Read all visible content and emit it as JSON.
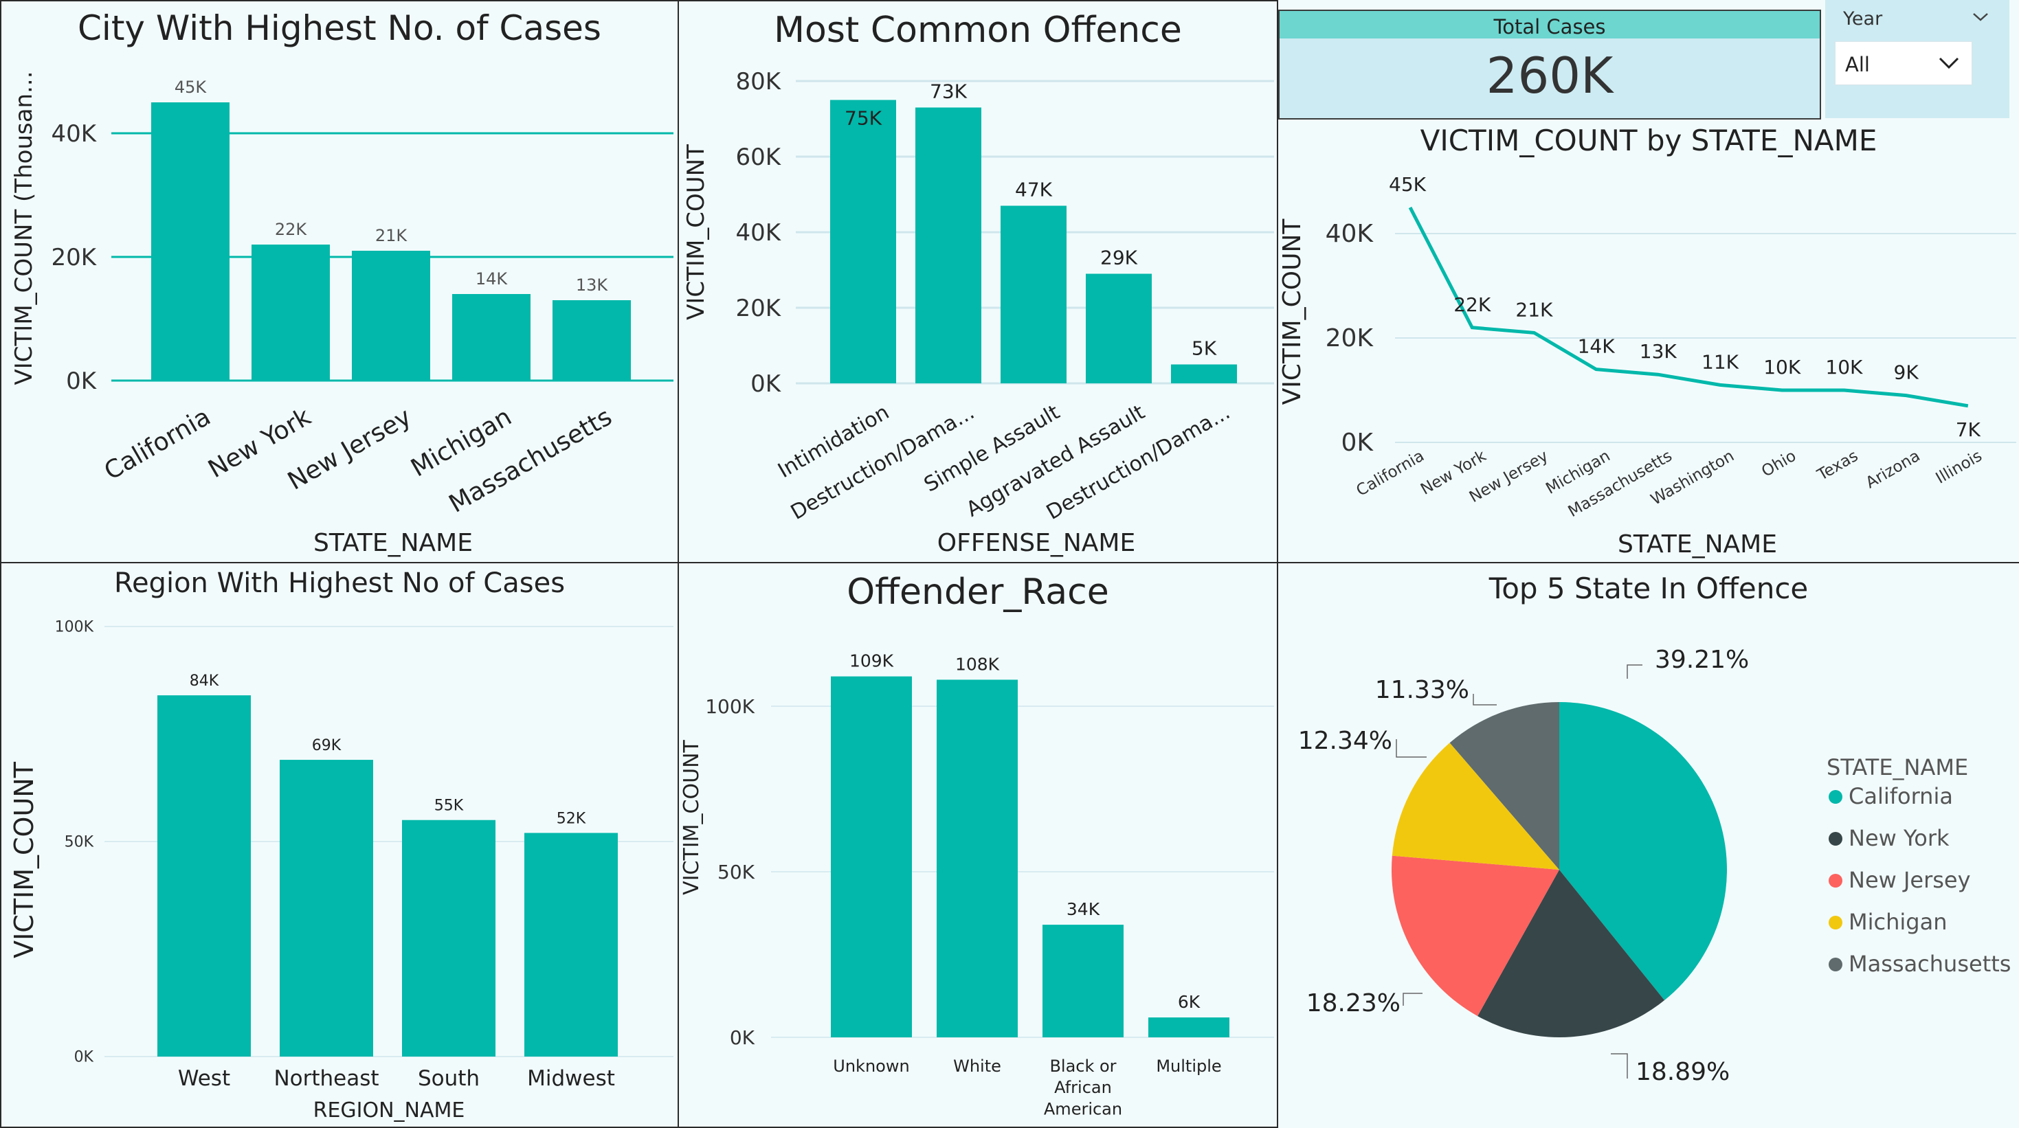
{
  "colors": {
    "teal": "#01b8aa",
    "dark": "#374649",
    "red": "#fd625e",
    "yellow": "#f2c80f",
    "gray": "#5f6b6d",
    "grid": "#cfe6ec",
    "panel_bg": "#f2fbfc",
    "kpi_band": "#6cd6cf",
    "kpi_bg": "#cdebf2"
  },
  "kpi": {
    "label": "Total Cases",
    "value": "260K"
  },
  "slicer": {
    "label": "Year",
    "selected": "All",
    "icon": "chevron-down-icon"
  },
  "chart_data": [
    {
      "id": "city",
      "type": "bar",
      "title": "City With Highest No. of Cases",
      "xlabel": "STATE_NAME",
      "ylabel": "VICTIM_COUNT (Thousan...",
      "categories": [
        "California",
        "New York",
        "New Jersey",
        "Michigan",
        "Massachusetts"
      ],
      "values": [
        45,
        22,
        21,
        14,
        13
      ],
      "data_labels": [
        "45K",
        "22K",
        "21K",
        "14K",
        "13K"
      ],
      "y_ticks": [
        "0K",
        "20K",
        "40K"
      ],
      "ylim": [
        0,
        48
      ],
      "grid": true
    },
    {
      "id": "offence",
      "type": "bar",
      "title": "Most Common Offence",
      "xlabel": "OFFENSE_NAME",
      "ylabel": "VICTIM_COUNT",
      "categories": [
        "Intimidation",
        "Destruction/Dama...",
        "Simple Assault",
        "Aggravated Assault",
        "Destruction/Dama..."
      ],
      "values": [
        75,
        73,
        47,
        29,
        5
      ],
      "data_labels": [
        "75K",
        "73K",
        "47K",
        "29K",
        "5K"
      ],
      "y_ticks": [
        "0K",
        "20K",
        "40K",
        "60K",
        "80K"
      ],
      "ylim": [
        0,
        80
      ],
      "grid": true
    },
    {
      "id": "line",
      "type": "line",
      "title": "VICTIM_COUNT by STATE_NAME",
      "xlabel": "STATE_NAME",
      "ylabel": "VICTIM_COUNT",
      "categories": [
        "California",
        "New York",
        "New Jersey",
        "Michigan",
        "Massachusetts",
        "Washington",
        "Ohio",
        "Texas",
        "Arizona",
        "Illinois"
      ],
      "values": [
        45,
        22,
        21,
        14,
        13,
        11,
        10,
        10,
        9,
        7
      ],
      "data_labels": [
        "45K",
        "22K",
        "21K",
        "14K",
        "13K",
        "11K",
        "10K",
        "10K",
        "9K",
        "7K"
      ],
      "y_ticks": [
        "0K",
        "20K",
        "40K"
      ],
      "ylim": [
        0,
        50
      ],
      "grid": true
    },
    {
      "id": "region",
      "type": "bar",
      "title": "Region  With Highest No of Cases",
      "xlabel": "REGION_NAME",
      "ylabel": "VICTIM_COUNT",
      "categories": [
        "West",
        "Northeast",
        "South",
        "Midwest"
      ],
      "values": [
        84,
        69,
        55,
        52
      ],
      "data_labels": [
        "84K",
        "69K",
        "55K",
        "52K"
      ],
      "y_ticks": [
        "0K",
        "50K",
        "100K"
      ],
      "ylim": [
        0,
        100
      ],
      "grid": true
    },
    {
      "id": "race",
      "type": "bar",
      "title": "Offender_Race",
      "xlabel": "",
      "ylabel": "VICTIM_COUNT",
      "categories": [
        [
          "Unknown"
        ],
        [
          "White"
        ],
        [
          "Black or",
          "African",
          "American"
        ],
        [
          "Multiple"
        ]
      ],
      "values": [
        109,
        108,
        34,
        6
      ],
      "data_labels": [
        "109K",
        "108K",
        "34K",
        "6K"
      ],
      "y_ticks": [
        "0K",
        "50K",
        "100K"
      ],
      "ylim": [
        0,
        120
      ],
      "grid": true
    },
    {
      "id": "pie",
      "type": "pie",
      "title": "Top 5 State In Offence",
      "legend_title": "STATE_NAME",
      "legend_position": "right",
      "slices": [
        {
          "name": "California",
          "value": 39.21,
          "label": "39.21%",
          "color": "#01b8aa"
        },
        {
          "name": "New York",
          "value": 18.89,
          "label": "18.89%",
          "color": "#374649"
        },
        {
          "name": "New Jersey",
          "value": 18.23,
          "label": "18.23%",
          "color": "#fd625e"
        },
        {
          "name": "Michigan",
          "value": 12.34,
          "label": "12.34%",
          "color": "#f2c80f"
        },
        {
          "name": "Massachusetts",
          "value": 11.33,
          "label": "11.33%",
          "color": "#5f6b6d"
        }
      ]
    }
  ]
}
